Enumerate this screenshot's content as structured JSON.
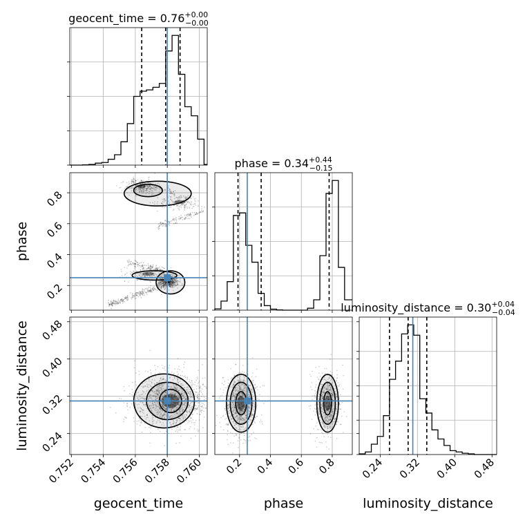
{
  "chart_data": {
    "type": "corner",
    "parameters": [
      "geocent_time",
      "phase",
      "luminosity_distance"
    ],
    "axis_labels": {
      "geocent_time": "geocent_time",
      "phase": "phase",
      "luminosity_distance": "luminosity_distance"
    },
    "ranges": {
      "geocent_time": [
        0.7519,
        0.7605
      ],
      "phase": [
        0.04,
        0.93
      ],
      "luminosity_distance": [
        0.195,
        0.49
      ]
    },
    "ticks": {
      "geocent_time": {
        "values": [
          0.752,
          0.754,
          0.756,
          0.758,
          0.76
        ],
        "labels": [
          "0.752",
          "0.754",
          "0.756",
          "0.758",
          "0.760"
        ]
      },
      "phase": {
        "values": [
          0.2,
          0.4,
          0.6,
          0.8
        ],
        "labels": [
          "0.2",
          "0.4",
          "0.6",
          "0.8"
        ]
      },
      "luminosity_distance": {
        "values": [
          0.24,
          0.32,
          0.4,
          0.48
        ],
        "labels": [
          "0.24",
          "0.32",
          "0.40",
          "0.48"
        ]
      }
    },
    "truths": {
      "geocent_time": 0.758,
      "phase": 0.25,
      "luminosity_distance": 0.31
    },
    "truth_color": "#4682b4",
    "titles": {
      "geocent_time": {
        "name": "geocent_time",
        "median": "0.76",
        "plus": "+0.00",
        "minus": "−0.00"
      },
      "phase": {
        "name": "phase",
        "median": "0.34",
        "plus": "+0.44",
        "minus": "−0.15"
      },
      "luminosity_distance": {
        "name": "luminosity_distance",
        "median": "0.30",
        "plus": "+0.04",
        "minus": "−0.04"
      }
    },
    "histograms": {
      "geocent_time": {
        "edges": [
          0.7519,
          0.7523,
          0.7527,
          0.7531,
          0.7535,
          0.7539,
          0.7543,
          0.7547,
          0.7551,
          0.7555,
          0.7559,
          0.7563,
          0.7567,
          0.7571,
          0.7575,
          0.7579,
          0.7583,
          0.7587,
          0.7591,
          0.7595,
          0.7599,
          0.7603,
          0.7605
        ],
        "counts": [
          0.0,
          0.0,
          0.2,
          0.5,
          1.5,
          2.0,
          4.5,
          8.0,
          18.0,
          32.0,
          53.0,
          57.0,
          58.0,
          60.0,
          63.0,
          88.0,
          100.0,
          70.0,
          45.0,
          38.0,
          20.0,
          0.5
        ],
        "quantiles": [
          0.7564,
          0.7579,
          0.7588
        ]
      },
      "phase": {
        "edges": [
          0.04,
          0.08,
          0.12,
          0.16,
          0.2,
          0.24,
          0.28,
          0.32,
          0.36,
          0.4,
          0.44,
          0.48,
          0.52,
          0.56,
          0.6,
          0.64,
          0.68,
          0.72,
          0.76,
          0.8,
          0.84,
          0.88,
          0.93
        ],
        "counts": [
          1.0,
          7.0,
          22.0,
          73.0,
          75.0,
          50.0,
          37.0,
          13.0,
          3.5,
          0.8,
          0.2,
          0.0,
          0.0,
          0.0,
          0.0,
          1.5,
          8.0,
          42.0,
          90.0,
          100.0,
          33.0,
          8.0
        ],
        "quantiles": [
          0.19,
          0.34,
          0.78
        ]
      },
      "luminosity_distance": {
        "edges": [
          0.195,
          0.208,
          0.221,
          0.234,
          0.247,
          0.26,
          0.273,
          0.286,
          0.299,
          0.312,
          0.325,
          0.338,
          0.351,
          0.364,
          0.377,
          0.39,
          0.403,
          0.416,
          0.429,
          0.442,
          0.455,
          0.468,
          0.49
        ],
        "counts": [
          0.5,
          2.0,
          8.0,
          14.0,
          30.0,
          58.0,
          72.0,
          93.0,
          100.0,
          92.0,
          43.0,
          32.0,
          19.0,
          12.0,
          7.0,
          3.0,
          2.0,
          1.0,
          0.5,
          0.0,
          0.0,
          0.0
        ],
        "quantiles": [
          0.26,
          0.3,
          0.34
        ]
      }
    },
    "joint": {
      "phase_vs_geocent_time": {
        "x": "geocent_time",
        "y": "phase",
        "clusters": [
          {
            "cx": 0.7581,
            "cy": 0.225,
            "sx": 0.0003,
            "sy": 0.02,
            "n": 550
          },
          {
            "cx": 0.7568,
            "cy": 0.275,
            "sx": 0.0007,
            "sy": 0.025,
            "n": 220
          },
          {
            "cx": 0.7564,
            "cy": 0.84,
            "sx": 0.0005,
            "sy": 0.025,
            "n": 230
          },
          {
            "cx": 0.7588,
            "cy": 0.74,
            "sx": 0.0007,
            "sy": 0.025,
            "n": 180
          }
        ],
        "streams": [
          {
            "x0": 0.7543,
            "y0": 0.075,
            "x1": 0.7578,
            "y1": 0.2,
            "n": 220,
            "spread": 0.012
          },
          {
            "x0": 0.7555,
            "y0": 0.35,
            "x1": 0.7577,
            "y1": 0.3,
            "n": 90,
            "spread": 0.01
          },
          {
            "x0": 0.7574,
            "y0": 0.58,
            "x1": 0.7604,
            "y1": 0.69,
            "n": 110,
            "spread": 0.012
          },
          {
            "x0": 0.7556,
            "y0": 0.88,
            "x1": 0.7585,
            "y1": 0.8,
            "n": 90,
            "spread": 0.012
          }
        ],
        "contours": [
          {
            "cx": 0.7582,
            "cy": 0.22,
            "rx": 0.0009,
            "ry": 0.075
          },
          {
            "cx": 0.7572,
            "cy": 0.265,
            "rx": 0.0014,
            "ry": 0.03
          },
          {
            "cx": 0.7574,
            "cy": 0.795,
            "rx": 0.0021,
            "ry": 0.08
          },
          {
            "cx": 0.7568,
            "cy": 0.815,
            "rx": 0.0009,
            "ry": 0.04
          }
        ]
      },
      "luminosity_distance_vs_geocent_time": {
        "x": "geocent_time",
        "y": "luminosity_distance",
        "clusters": [
          {
            "cx": 0.7582,
            "cy": 0.31,
            "sx": 0.0011,
            "sy": 0.03,
            "n": 1400
          }
        ],
        "streams": [],
        "contours": [
          {
            "cx": 0.7582,
            "cy": 0.31,
            "rx": 0.0007,
            "ry": 0.025
          },
          {
            "cx": 0.758,
            "cy": 0.31,
            "rx": 0.0013,
            "ry": 0.04
          },
          {
            "cx": 0.7578,
            "cy": 0.31,
            "rx": 0.0019,
            "ry": 0.058
          }
        ]
      },
      "luminosity_distance_vs_phase": {
        "x": "phase",
        "y": "luminosity_distance",
        "clusters": [
          {
            "cx": 0.21,
            "cy": 0.305,
            "sx": 0.05,
            "sy": 0.032,
            "n": 900
          },
          {
            "cx": 0.77,
            "cy": 0.305,
            "sx": 0.04,
            "sy": 0.032,
            "n": 700
          }
        ],
        "streams": [],
        "contours": [
          {
            "cx": 0.21,
            "cy": 0.305,
            "rx": 0.035,
            "ry": 0.025
          },
          {
            "cx": 0.21,
            "cy": 0.305,
            "rx": 0.07,
            "ry": 0.045
          },
          {
            "cx": 0.21,
            "cy": 0.305,
            "rx": 0.095,
            "ry": 0.062
          },
          {
            "cx": 0.77,
            "cy": 0.305,
            "rx": 0.025,
            "ry": 0.025
          },
          {
            "cx": 0.77,
            "cy": 0.305,
            "rx": 0.05,
            "ry": 0.045
          },
          {
            "cx": 0.77,
            "cy": 0.305,
            "rx": 0.07,
            "ry": 0.062
          }
        ]
      }
    },
    "grid": true,
    "histogram_color": "#000000",
    "quantile_line_style": "dashed"
  }
}
